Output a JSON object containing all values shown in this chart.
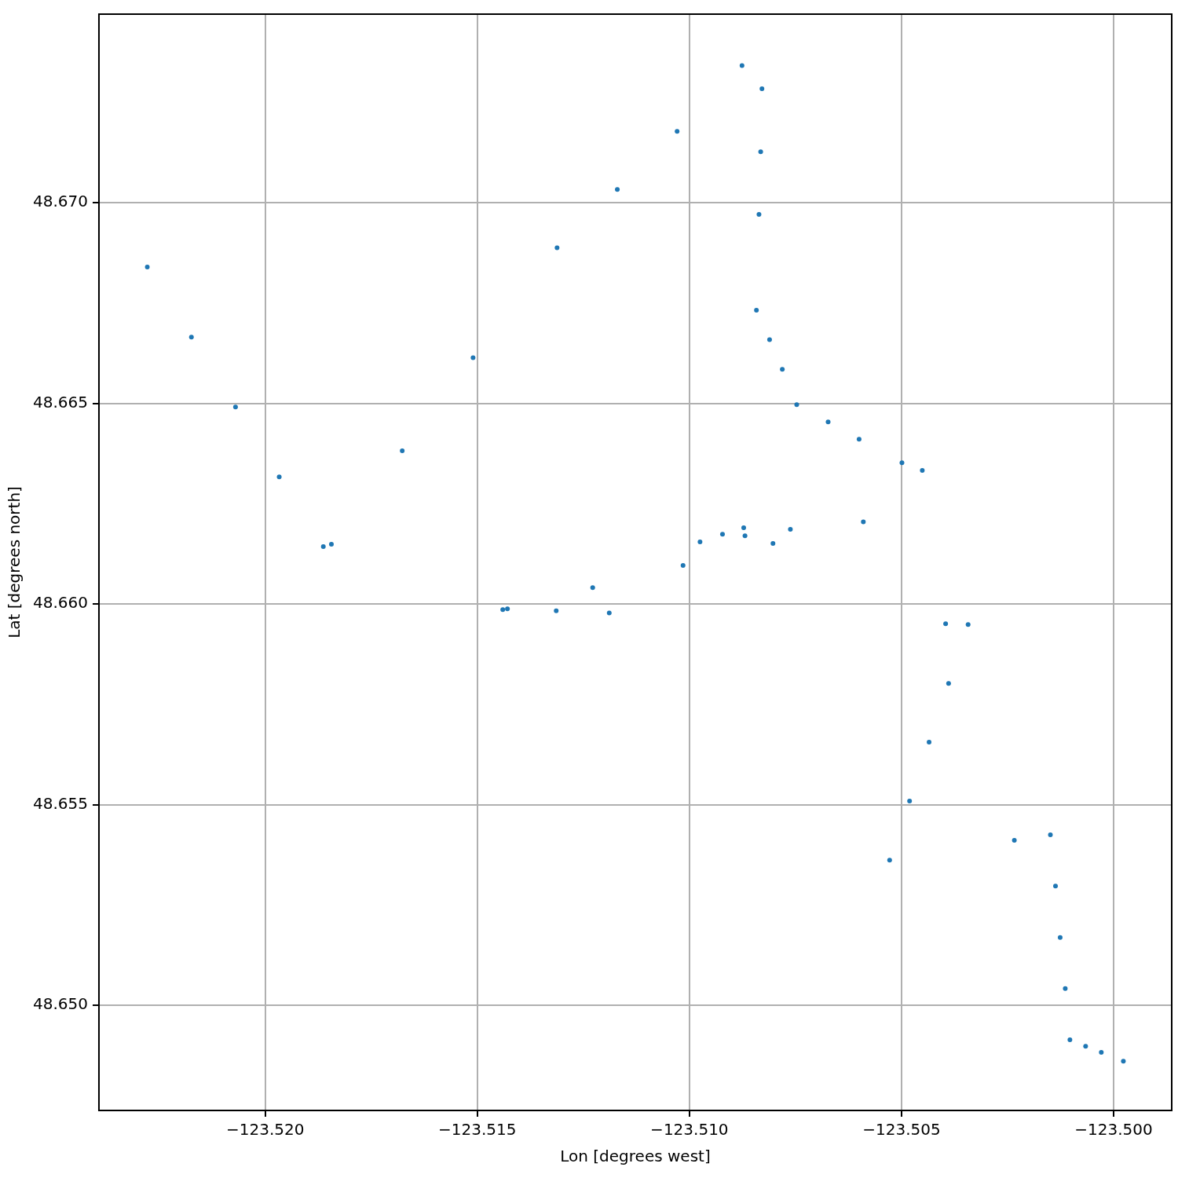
{
  "chart_data": {
    "type": "scatter",
    "xlabel": "Lon [degrees west]",
    "ylabel": "Lat [degrees north]",
    "x": [
      -123.52278,
      -123.52174,
      -123.5207,
      -123.51967,
      -123.51863,
      -123.51844,
      -123.51677,
      -123.5151,
      -123.51312,
      -123.5117,
      -123.51029,
      -123.50876,
      -123.50829,
      -123.50832,
      -123.50836,
      -123.50842,
      -123.50811,
      -123.50781,
      -123.50747,
      -123.50673,
      -123.506,
      -123.50499,
      -123.50451,
      -123.50975,
      -123.50869,
      -123.50762,
      -123.50922,
      -123.50872,
      -123.5144,
      -123.51228,
      -123.51015,
      -123.50803,
      -123.5059,
      -123.51429,
      -123.51314,
      -123.51189,
      -123.50396,
      -123.50343,
      -123.50389,
      -123.50435,
      -123.50481,
      -123.50528,
      -123.50234,
      -123.50149,
      -123.50137,
      -123.50126,
      -123.50114,
      -123.50103,
      -123.50066,
      -123.50029,
      -123.49977
    ],
    "values": [
      48.6684,
      48.66665,
      48.66491,
      48.66317,
      48.66143,
      48.66149,
      48.66382,
      48.66614,
      48.66888,
      48.67033,
      48.67178,
      48.67342,
      48.67284,
      48.67127,
      48.66971,
      48.66732,
      48.66659,
      48.66585,
      48.66497,
      48.66454,
      48.66411,
      48.66352,
      48.66333,
      48.66155,
      48.6617,
      48.66186,
      48.66174,
      48.6619,
      48.65986,
      48.66041,
      48.66096,
      48.66151,
      48.66205,
      48.65988,
      48.65983,
      48.65978,
      48.65951,
      48.65949,
      48.65802,
      48.65656,
      48.65509,
      48.65362,
      48.65411,
      48.65425,
      48.65297,
      48.65169,
      48.65042,
      48.64914,
      48.64898,
      48.64883,
      48.64861
    ],
    "color": "#1f77b4",
    "marker": "circle",
    "grid": true,
    "xlim": [
      -123.52392,
      -123.49863
    ],
    "ylim": [
      48.64738,
      48.6747
    ],
    "xticks": [
      {
        "value": -123.52,
        "label": "−123.520"
      },
      {
        "value": -123.515,
        "label": "−123.515"
      },
      {
        "value": -123.51,
        "label": "−123.510"
      },
      {
        "value": -123.505,
        "label": "−123.505"
      },
      {
        "value": -123.5,
        "label": "−123.500"
      }
    ],
    "yticks": [
      {
        "value": 48.65,
        "label": "48.650"
      },
      {
        "value": 48.655,
        "label": "48.655"
      },
      {
        "value": 48.66,
        "label": "48.660"
      },
      {
        "value": 48.665,
        "label": "48.665"
      },
      {
        "value": 48.67,
        "label": "48.670"
      }
    ]
  }
}
